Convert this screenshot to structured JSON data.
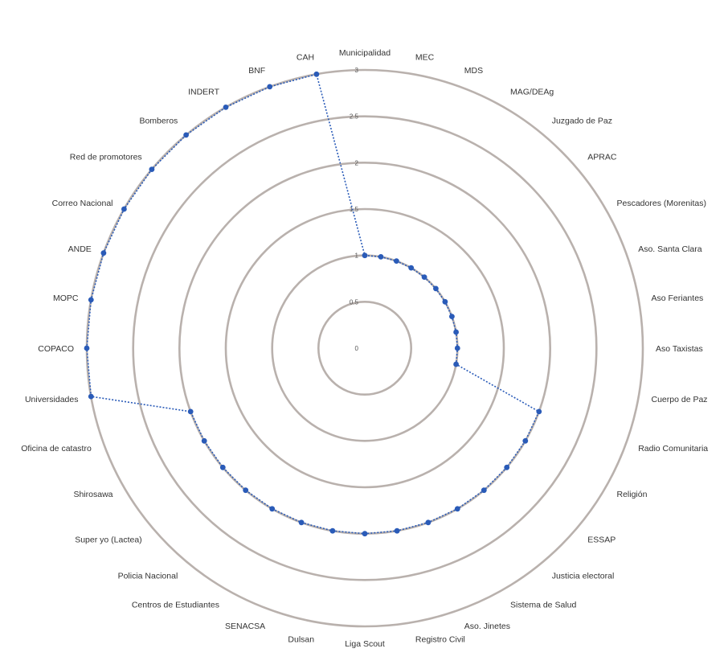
{
  "chart_data": {
    "type": "radar",
    "categories": [
      "Municipalidad",
      "MEC",
      "MDS",
      "MAG/DEAg",
      "Juzgado de Paz",
      "APRAC",
      "Pescadores (Morenitas)",
      "Aso. Santa Clara",
      "Aso Feriantes",
      "Aso Taxistas",
      "Cuerpo de Paz",
      "Radio Comunitaria",
      "Religión",
      "ESSAP",
      "Justicia electoral",
      "Sistema de Salud",
      "Aso. Jinetes",
      "Registro Civil",
      "Liga Scout",
      "Dulsan",
      "SENACSA",
      "Centros de Estudiantes",
      "Policia Nacional",
      "Super yo (Lactea)",
      "Shirosawa",
      "Oficina de catastro",
      "Universidades",
      "COPACO",
      "MOPC",
      "ANDE",
      "Correo Nacional",
      "Red de promotores",
      "Bomberos",
      "INDERT",
      "BNF",
      "CAH"
    ],
    "series": [
      {
        "name": "",
        "color": "#2a5bb8",
        "values": [
          1,
          1,
          1,
          1,
          1,
          1,
          1,
          1,
          1,
          1,
          1,
          2,
          2,
          2,
          2,
          2,
          2,
          2,
          2,
          2,
          2,
          2,
          2,
          2,
          2,
          2,
          3,
          3,
          3,
          3,
          3,
          3,
          3,
          3,
          3,
          3
        ]
      }
    ],
    "rlim": [
      0,
      3
    ],
    "ticks": [
      0,
      0.5,
      1,
      1.5,
      2,
      2.5,
      3
    ],
    "tick_labels": [
      "0",
      "0.5",
      "1",
      "1.5",
      "2",
      "2.5",
      "3"
    ],
    "rings": [
      0.5,
      1,
      1.5,
      2,
      2.5,
      3
    ],
    "grid": true,
    "legend": "none"
  }
}
